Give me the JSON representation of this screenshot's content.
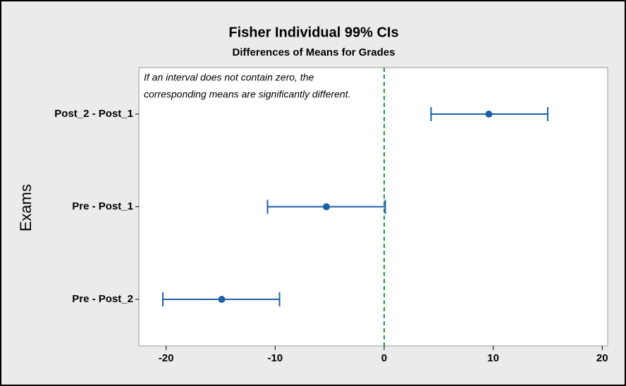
{
  "chart_data": {
    "type": "interval",
    "title": "Fisher Individual 99% CIs",
    "subtitle": "Differences of Means for Grades",
    "ylabel": "Exams",
    "annotation": [
      "If an interval does not contain zero, the",
      "corresponding means are significantly different."
    ],
    "categories": [
      "Post_2 - Post_1",
      "Pre - Post_1",
      "Pre - Post_2"
    ],
    "values": [
      9.6,
      -5.3,
      -14.9
    ],
    "lower": [
      4.3,
      -10.7,
      -20.3
    ],
    "upper": [
      15.0,
      0.1,
      -9.6
    ],
    "color": "#1f5fa8",
    "reference_line": 0,
    "reference_color": "#1a9a3a",
    "xlim": [
      -22.5,
      20.5
    ],
    "xticks": [
      -20,
      -10,
      0,
      10,
      20
    ]
  }
}
